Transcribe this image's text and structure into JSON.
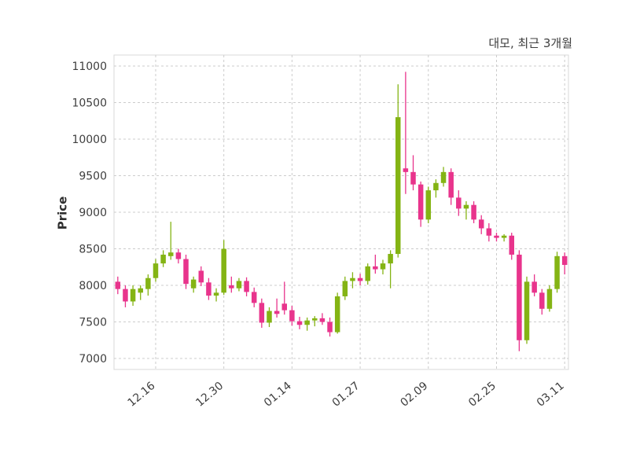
{
  "header": {
    "title": "대모, 최근 3개월"
  },
  "axes": {
    "y_label": "Price"
  },
  "colors": {
    "up": "#84b414",
    "down": "#e8348c",
    "grid": "#cccccc",
    "border": "#d9d9d9",
    "tick_text": "#3f3f3f",
    "background": "#ffffff"
  },
  "chart_data": {
    "type": "candlestick",
    "title": "대모, 최근 3개월",
    "ylabel": "Price",
    "ylim": [
      6850,
      11150
    ],
    "y_ticks": [
      7000,
      7500,
      8000,
      8500,
      9000,
      9500,
      10000,
      10500,
      11000
    ],
    "x_tick_labels": [
      "12.16",
      "12.30",
      "01.14",
      "01.27",
      "02.09",
      "02.25",
      "03.11"
    ],
    "x_tick_indices": [
      5,
      14,
      23,
      32,
      41,
      50,
      59
    ],
    "grid": "dashed",
    "legend": "none",
    "candles": [
      [
        8050,
        8120,
        7880,
        7950
      ],
      [
        7950,
        8000,
        7700,
        7780
      ],
      [
        7780,
        8000,
        7720,
        7950
      ],
      [
        7900,
        8000,
        7800,
        7960
      ],
      [
        7950,
        8150,
        7860,
        8100
      ],
      [
        8100,
        8360,
        8050,
        8300
      ],
      [
        8300,
        8480,
        8250,
        8420
      ],
      [
        8400,
        8870,
        8350,
        8450
      ],
      [
        8450,
        8500,
        8300,
        8360
      ],
      [
        8360,
        8420,
        7950,
        8020
      ],
      [
        7960,
        8120,
        7900,
        8080
      ],
      [
        8200,
        8260,
        7990,
        8040
      ],
      [
        8040,
        8100,
        7800,
        7860
      ],
      [
        7860,
        7960,
        7780,
        7900
      ],
      [
        7900,
        8620,
        7870,
        8500
      ],
      [
        8000,
        8120,
        7900,
        7960
      ],
      [
        7960,
        8100,
        7920,
        8060
      ],
      [
        8060,
        8110,
        7850,
        7910
      ],
      [
        7910,
        7970,
        7700,
        7760
      ],
      [
        7760,
        7820,
        7420,
        7490
      ],
      [
        7490,
        7700,
        7430,
        7650
      ],
      [
        7650,
        7820,
        7560,
        7610
      ],
      [
        7750,
        8050,
        7600,
        7660
      ],
      [
        7660,
        7720,
        7450,
        7510
      ],
      [
        7510,
        7570,
        7400,
        7460
      ],
      [
        7460,
        7560,
        7380,
        7520
      ],
      [
        7520,
        7580,
        7440,
        7550
      ],
      [
        7550,
        7620,
        7460,
        7500
      ],
      [
        7500,
        7560,
        7300,
        7360
      ],
      [
        7360,
        7900,
        7340,
        7850
      ],
      [
        7850,
        8120,
        7800,
        8060
      ],
      [
        8060,
        8180,
        7960,
        8100
      ],
      [
        8100,
        8160,
        8000,
        8060
      ],
      [
        8060,
        8300,
        8010,
        8260
      ],
      [
        8260,
        8420,
        8160,
        8220
      ],
      [
        8220,
        8350,
        8150,
        8300
      ],
      [
        8300,
        8480,
        7960,
        8430
      ],
      [
        8430,
        10750,
        8380,
        10300
      ],
      [
        9600,
        10920,
        9250,
        9550
      ],
      [
        9550,
        9780,
        9300,
        9380
      ],
      [
        9380,
        9420,
        8800,
        8900
      ],
      [
        8900,
        9350,
        8850,
        9300
      ],
      [
        9300,
        9450,
        9200,
        9400
      ],
      [
        9400,
        9620,
        9350,
        9550
      ],
      [
        9550,
        9600,
        9100,
        9200
      ],
      [
        9200,
        9300,
        8950,
        9050
      ],
      [
        9050,
        9150,
        8900,
        9100
      ],
      [
        9100,
        9150,
        8850,
        8900
      ],
      [
        8900,
        8960,
        8700,
        8780
      ],
      [
        8780,
        8850,
        8600,
        8680
      ],
      [
        8680,
        8720,
        8600,
        8650
      ],
      [
        8650,
        8700,
        8600,
        8680
      ],
      [
        8680,
        8720,
        8350,
        8420
      ],
      [
        8420,
        8480,
        7100,
        7250
      ],
      [
        7250,
        8120,
        7200,
        8050
      ],
      [
        8050,
        8150,
        7850,
        7900
      ],
      [
        7900,
        7950,
        7600,
        7680
      ],
      [
        7680,
        8000,
        7640,
        7950
      ],
      [
        7950,
        8460,
        7900,
        8400
      ],
      [
        8400,
        8450,
        8150,
        8280
      ]
    ]
  }
}
